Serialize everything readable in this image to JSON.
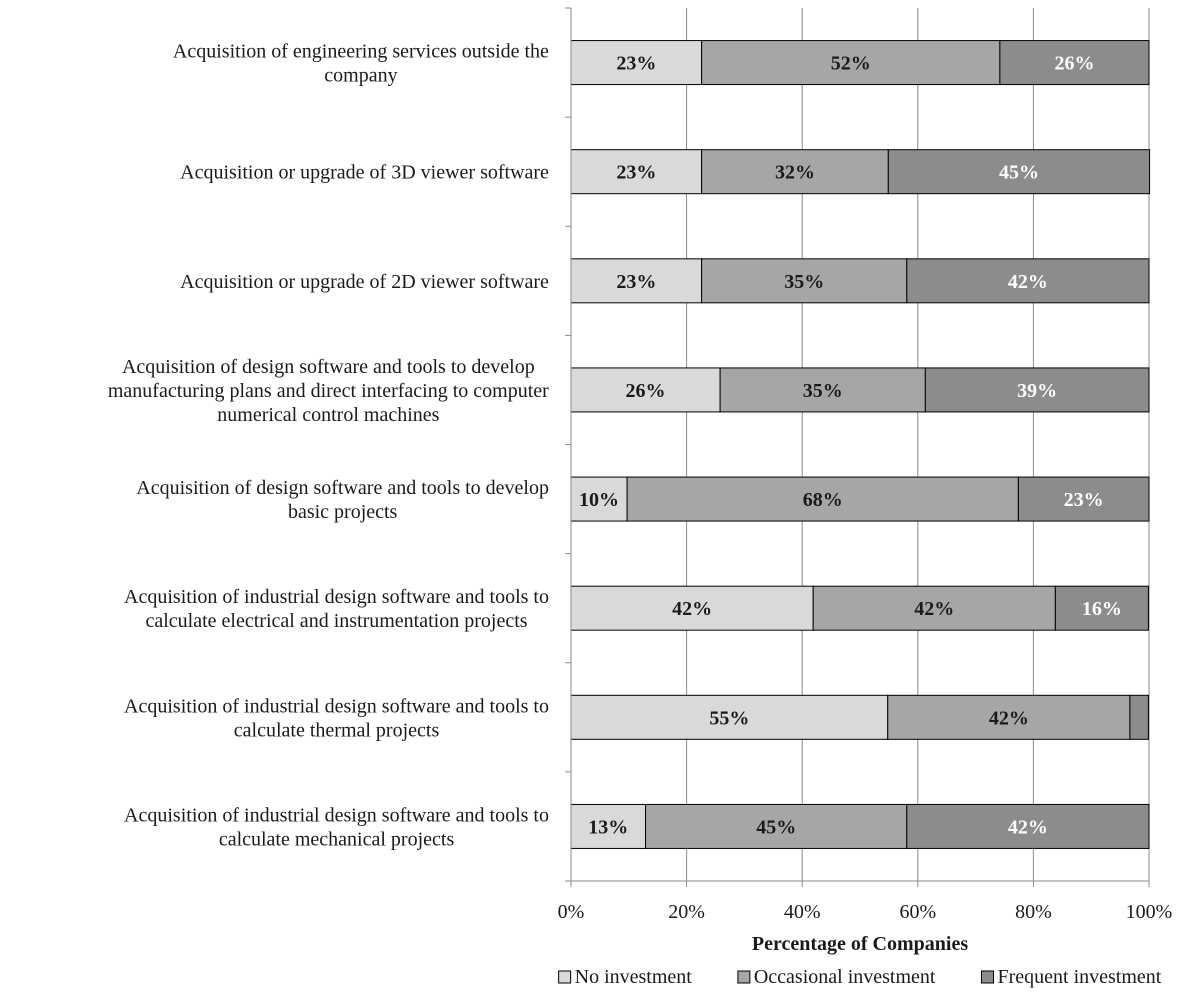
{
  "chart_data": {
    "type": "bar",
    "orientation": "horizontal",
    "stacked": true,
    "categories": [
      [
        "Acquisition of engineering services outside the",
        "company"
      ],
      [
        "Acquisition or upgrade of 3D viewer software"
      ],
      [
        "Acquisition or upgrade of 2D viewer software"
      ],
      [
        "Acquisition of design software and tools to develop",
        "manufacturing plans and direct interfacing to computer",
        "numerical control machines"
      ],
      [
        "Acquisition of design software and tools to develop",
        "basic projects"
      ],
      [
        "Acquisition of industrial design software and tools to",
        "calculate electrical and instrumentation projects"
      ],
      [
        "Acquisition of industrial design software and tools to",
        "calculate thermal projects"
      ],
      [
        "Acquisition of industrial design software and tools to",
        "calculate mechanical projects"
      ]
    ],
    "series": [
      {
        "name": "No investment",
        "color": "#d9d9d9",
        "label_color": "#1a1a1a",
        "values": [
          22.6,
          22.6,
          22.6,
          25.8,
          9.7,
          41.9,
          54.8,
          12.9
        ],
        "labels": [
          "23%",
          "23%",
          "23%",
          "26%",
          "10%",
          "42%",
          "55%",
          "13%"
        ]
      },
      {
        "name": "Occasional investment",
        "color": "#a6a6a6",
        "label_color": "#1a1a1a",
        "values": [
          51.6,
          32.3,
          35.5,
          35.5,
          67.7,
          41.9,
          41.9,
          45.2
        ],
        "labels": [
          "52%",
          "32%",
          "35%",
          "35%",
          "68%",
          "42%",
          "42%",
          "45%"
        ]
      },
      {
        "name": "Frequent investment",
        "color": "#8c8c8c",
        "label_color": "#ffffff",
        "values": [
          25.8,
          45.2,
          41.9,
          38.7,
          22.6,
          16.1,
          3.2,
          41.9
        ],
        "labels": [
          "26%",
          "45%",
          "42%",
          "39%",
          "23%",
          "16%",
          "",
          "42%"
        ]
      }
    ],
    "xlim": [
      0,
      100
    ],
    "xticks": [
      "0%",
      "20%",
      "40%",
      "60%",
      "80%",
      "100%"
    ],
    "xlabel": "Percentage of Companies",
    "ylabel": "",
    "title": "",
    "grid": "vertical",
    "legend": {
      "position": "bottom",
      "entries": [
        "No investment",
        "Occasional investment",
        "Frequent investment"
      ]
    }
  }
}
